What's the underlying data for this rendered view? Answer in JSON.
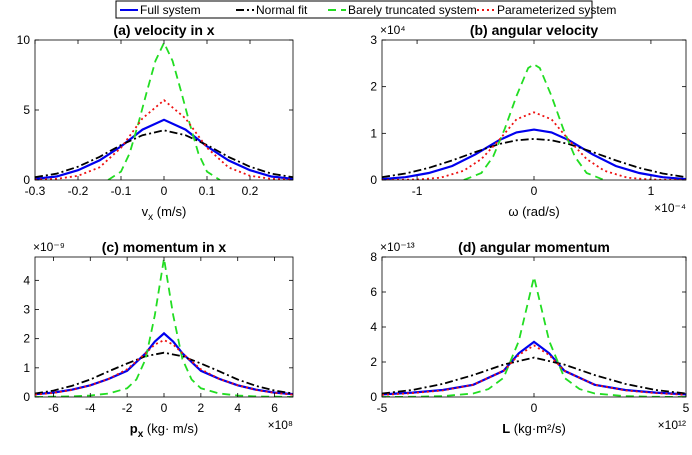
{
  "legend": [
    {
      "label": "Full system",
      "color": "#0000ee",
      "dash": ""
    },
    {
      "label": "Normal fit",
      "color": "#000000",
      "dash": "8,3,2,3"
    },
    {
      "label": "Barely truncated system",
      "color": "#22dd22",
      "dash": "8,5"
    },
    {
      "label": "Parameterized system",
      "color": "#ee1111",
      "dash": "2,3"
    }
  ],
  "chart_data": [
    {
      "type": "line",
      "title": "(a) velocity in x",
      "xlabel_main": "v",
      "xlabel_sub": "x",
      "xlabel_unit": " (m/s)",
      "xlim": [
        -0.3,
        0.3
      ],
      "ylim": [
        0,
        10
      ],
      "xticks": [
        -0.3,
        -0.2,
        -0.1,
        0,
        0.1,
        0.2
      ],
      "xtick_labels": [
        "-0.3",
        "-0.2",
        "-0.1",
        "0",
        "0.1",
        "0.2"
      ],
      "yticks": [
        0,
        5,
        10
      ],
      "ytick_labels": [
        "0",
        "5",
        "10"
      ],
      "x_exponent": "",
      "y_exponent": "",
      "series": [
        {
          "name": "Full system",
          "x": [
            -0.3,
            -0.25,
            -0.2,
            -0.15,
            -0.1,
            -0.05,
            0,
            0.05,
            0.1,
            0.15,
            0.2,
            0.25,
            0.3
          ],
          "values": [
            0.08,
            0.25,
            0.7,
            1.4,
            2.4,
            3.6,
            4.3,
            3.6,
            2.4,
            1.4,
            0.7,
            0.25,
            0.08
          ]
        },
        {
          "name": "Normal fit",
          "x": [
            -0.3,
            -0.25,
            -0.2,
            -0.15,
            -0.1,
            -0.05,
            0,
            0.05,
            0.1,
            0.15,
            0.2,
            0.25,
            0.3
          ],
          "values": [
            0.2,
            0.45,
            0.95,
            1.65,
            2.5,
            3.2,
            3.55,
            3.2,
            2.5,
            1.65,
            0.95,
            0.45,
            0.2
          ]
        },
        {
          "name": "Barely truncated system",
          "x": [
            -0.13,
            -0.1,
            -0.08,
            -0.06,
            -0.04,
            -0.02,
            0,
            0.02,
            0.04,
            0.06,
            0.08,
            0.1,
            0.13
          ],
          "values": [
            0,
            0.6,
            1.9,
            4.0,
            6.3,
            8.5,
            9.8,
            8.5,
            6.3,
            4.0,
            1.9,
            0.6,
            0
          ]
        },
        {
          "name": "Parameterized system",
          "x": [
            -0.3,
            -0.25,
            -0.2,
            -0.15,
            -0.1,
            -0.05,
            0,
            0.05,
            0.1,
            0.15,
            0.2,
            0.25,
            0.3
          ],
          "values": [
            0.02,
            0.08,
            0.3,
            0.9,
            2.3,
            4.4,
            5.7,
            4.4,
            2.3,
            0.9,
            0.3,
            0.08,
            0.02
          ]
        }
      ]
    },
    {
      "type": "line",
      "title": "(b) angular velocity",
      "xlabel_main": "ω",
      "xlabel_sub": "",
      "xlabel_unit": " (rad/s)",
      "xlim": [
        -1.3,
        1.3
      ],
      "ylim": [
        0,
        3
      ],
      "xticks": [
        -1,
        0,
        1
      ],
      "xtick_labels": [
        "-1",
        "0",
        "1"
      ],
      "yticks": [
        0,
        1,
        2,
        3
      ],
      "ytick_labels": [
        "0",
        "1",
        "2",
        "3"
      ],
      "x_exponent": "×10⁻⁴",
      "y_exponent": "×10⁴",
      "series": [
        {
          "name": "Full system",
          "x": [
            -1.3,
            -1.1,
            -0.9,
            -0.7,
            -0.5,
            -0.3,
            -0.15,
            0,
            0.15,
            0.3,
            0.5,
            0.7,
            0.9,
            1.1,
            1.3
          ],
          "values": [
            0.02,
            0.06,
            0.15,
            0.3,
            0.55,
            0.85,
            1.02,
            1.08,
            1.02,
            0.85,
            0.55,
            0.3,
            0.15,
            0.06,
            0.02
          ]
        },
        {
          "name": "Normal fit",
          "x": [
            -1.3,
            -1.1,
            -0.9,
            -0.7,
            -0.5,
            -0.3,
            -0.15,
            0,
            0.15,
            0.3,
            0.5,
            0.7,
            0.9,
            1.1,
            1.3
          ],
          "values": [
            0.06,
            0.14,
            0.26,
            0.42,
            0.6,
            0.77,
            0.85,
            0.88,
            0.85,
            0.77,
            0.6,
            0.42,
            0.26,
            0.14,
            0.06
          ]
        },
        {
          "name": "Barely truncated system",
          "x": [
            -0.6,
            -0.45,
            -0.35,
            -0.25,
            -0.15,
            -0.05,
            0,
            0.05,
            0.15,
            0.25,
            0.35,
            0.45,
            0.6
          ],
          "values": [
            0,
            0.15,
            0.5,
            1.1,
            1.8,
            2.4,
            2.48,
            2.4,
            1.8,
            1.1,
            0.5,
            0.15,
            0
          ]
        },
        {
          "name": "Parameterized system",
          "x": [
            -1.3,
            -1.0,
            -0.8,
            -0.6,
            -0.45,
            -0.3,
            -0.15,
            0,
            0.15,
            0.3,
            0.45,
            0.6,
            0.8,
            1.0,
            1.3
          ],
          "values": [
            0,
            0.01,
            0.05,
            0.2,
            0.45,
            0.85,
            1.3,
            1.45,
            1.3,
            0.85,
            0.45,
            0.2,
            0.05,
            0.01,
            0
          ]
        }
      ]
    },
    {
      "type": "line",
      "title": "(c) momentum in x",
      "xlabel_main": "p",
      "xlabel_sub": "x",
      "xlabel_unit": "  (kg· m/s)",
      "xlim": [
        -7,
        7
      ],
      "ylim": [
        0,
        4.8
      ],
      "xticks": [
        -6,
        -4,
        -2,
        0,
        2,
        4,
        6
      ],
      "xtick_labels": [
        "-6",
        "-4",
        "-2",
        "0",
        "2",
        "4",
        "6"
      ],
      "yticks": [
        0,
        1,
        2,
        3,
        4
      ],
      "ytick_labels": [
        "0",
        "1",
        "2",
        "3",
        "4"
      ],
      "x_exponent": "×10⁸",
      "y_exponent": "×10⁻⁹",
      "series": [
        {
          "name": "Full system",
          "x": [
            -7,
            -6,
            -5,
            -4,
            -3,
            -2,
            -1,
            -0.5,
            0,
            0.5,
            1,
            2,
            3,
            4,
            5,
            6,
            7
          ],
          "values": [
            0.1,
            0.15,
            0.25,
            0.4,
            0.62,
            0.9,
            1.5,
            1.9,
            2.18,
            1.9,
            1.5,
            0.9,
            0.62,
            0.4,
            0.25,
            0.15,
            0.1
          ]
        },
        {
          "name": "Normal fit",
          "x": [
            -7,
            -6,
            -5,
            -4,
            -3,
            -2,
            -1,
            0,
            1,
            2,
            3,
            4,
            5,
            6,
            7
          ],
          "values": [
            0.12,
            0.22,
            0.38,
            0.6,
            0.88,
            1.15,
            1.4,
            1.52,
            1.4,
            1.15,
            0.88,
            0.6,
            0.38,
            0.22,
            0.12
          ]
        },
        {
          "name": "Barely truncated system",
          "x": [
            -7,
            -6,
            -5,
            -4,
            -3,
            -2,
            -1.5,
            -1,
            -0.5,
            0,
            0.5,
            1,
            1.5,
            2,
            3,
            4,
            5,
            6,
            7
          ],
          "values": [
            0,
            0.01,
            0.02,
            0.05,
            0.12,
            0.3,
            0.6,
            1.3,
            2.8,
            4.75,
            2.8,
            1.3,
            0.6,
            0.3,
            0.12,
            0.05,
            0.02,
            0.01,
            0
          ]
        },
        {
          "name": "Parameterized system",
          "x": [
            -7,
            -6,
            -5,
            -4,
            -3,
            -2,
            -1,
            -0.5,
            0,
            0.5,
            1,
            2,
            3,
            4,
            5,
            6,
            7
          ],
          "values": [
            0.08,
            0.14,
            0.24,
            0.4,
            0.62,
            0.95,
            1.5,
            1.8,
            1.95,
            1.8,
            1.5,
            0.95,
            0.62,
            0.4,
            0.24,
            0.14,
            0.08
          ]
        }
      ]
    },
    {
      "type": "line",
      "title": "(d) angular momentum",
      "xlabel_main": "L",
      "xlabel_sub": "",
      "xlabel_unit": "  (kg·m²/s)",
      "xlim": [
        -5,
        5
      ],
      "ylim": [
        0,
        8
      ],
      "xticks": [
        -5,
        0,
        5
      ],
      "xtick_labels": [
        "-5",
        "0",
        "5"
      ],
      "yticks": [
        0,
        2,
        4,
        6,
        8
      ],
      "ytick_labels": [
        "0",
        "2",
        "4",
        "6",
        "8"
      ],
      "x_exponent": "×10¹²",
      "y_exponent": "×10⁻¹³",
      "series": [
        {
          "name": "Full system",
          "x": [
            -5,
            -4,
            -3,
            -2,
            -1,
            -0.5,
            0,
            0.5,
            1,
            2,
            3,
            4,
            5
          ],
          "values": [
            0.15,
            0.25,
            0.4,
            0.7,
            1.5,
            2.5,
            3.15,
            2.5,
            1.5,
            0.7,
            0.4,
            0.25,
            0.15
          ]
        },
        {
          "name": "Normal fit",
          "x": [
            -5,
            -4,
            -3,
            -2,
            -1,
            0,
            1,
            2,
            3,
            4,
            5
          ],
          "values": [
            0.2,
            0.4,
            0.75,
            1.25,
            1.85,
            2.25,
            1.85,
            1.25,
            0.75,
            0.4,
            0.2
          ]
        },
        {
          "name": "Barely truncated system",
          "x": [
            -5,
            -4,
            -3,
            -2,
            -1.5,
            -1,
            -0.5,
            0,
            0.5,
            1,
            1.5,
            2,
            3,
            4,
            5
          ],
          "values": [
            0,
            0.01,
            0.05,
            0.2,
            0.45,
            1.1,
            3.2,
            6.85,
            3.2,
            1.1,
            0.45,
            0.2,
            0.05,
            0.01,
            0
          ]
        },
        {
          "name": "Parameterized system",
          "x": [
            -5,
            -4,
            -3,
            -2,
            -1,
            -0.5,
            0,
            0.5,
            1,
            2,
            3,
            4,
            5
          ],
          "values": [
            0.12,
            0.22,
            0.38,
            0.7,
            1.5,
            2.4,
            2.95,
            2.4,
            1.5,
            0.7,
            0.38,
            0.22,
            0.12
          ]
        }
      ]
    }
  ]
}
